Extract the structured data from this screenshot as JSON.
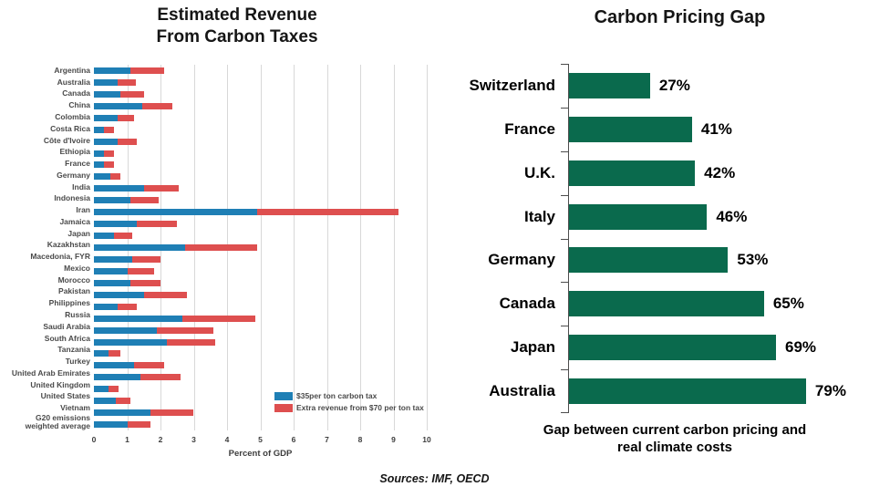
{
  "footer": {
    "sources": "Sources: IMF, OECD"
  },
  "chart_data": [
    {
      "type": "bar",
      "orientation": "horizontal",
      "stacked": true,
      "title": "Estimated Revenue\nFrom Carbon Taxes",
      "xlabel": "Percent of GDP",
      "xlim": [
        0,
        10
      ],
      "xticks": [
        0,
        1,
        2,
        3,
        4,
        5,
        6,
        7,
        8,
        9,
        10
      ],
      "grid": true,
      "gridline_color": "#d8d8d8",
      "legend_position": "inside-bottom-right",
      "categories": [
        "Argentina",
        "Australia",
        "Canada",
        "China",
        "Colombia",
        "Costa Rica",
        "Côte d'Ivoire",
        "Ethiopia",
        "France",
        "Germany",
        "India",
        "Indonesia",
        "Iran",
        "Jamaica",
        "Japan",
        "Kazakhstan",
        "Macedonia, FYR",
        "Mexico",
        "Morocco",
        "Pakistan",
        "Philippines",
        "Russia",
        "Saudi Arabia",
        "South Africa",
        "Tanzania",
        "Turkey",
        "United Arab Emirates",
        "United Kingdom",
        "United States",
        "Vietnam",
        "G20 emissions\nweighted average"
      ],
      "series": [
        {
          "name": "$35per ton carbon tax",
          "color": "#1f7fb5",
          "values": [
            1.1,
            0.7,
            0.8,
            1.45,
            0.7,
            0.3,
            0.7,
            0.3,
            0.3,
            0.5,
            1.5,
            1.1,
            4.9,
            1.3,
            0.6,
            2.75,
            1.15,
            1.0,
            1.1,
            1.5,
            0.7,
            2.65,
            1.9,
            2.2,
            0.45,
            1.2,
            1.4,
            0.45,
            0.65,
            1.7,
            1.0
          ]
        },
        {
          "name": "Extra revenue from $70 per ton tax",
          "color": "#de4f4f",
          "values": [
            1.0,
            0.55,
            0.7,
            0.9,
            0.5,
            0.3,
            0.6,
            0.3,
            0.3,
            0.3,
            1.05,
            0.85,
            4.25,
            1.2,
            0.55,
            2.15,
            0.85,
            0.8,
            0.9,
            1.3,
            0.6,
            2.2,
            1.7,
            1.45,
            0.35,
            0.9,
            1.2,
            0.3,
            0.45,
            1.3,
            0.7
          ]
        }
      ]
    },
    {
      "type": "bar",
      "orientation": "horizontal",
      "title": "Carbon Pricing Gap",
      "bar_color": "#0a6a4d",
      "xlim": [
        0,
        100
      ],
      "grid": false,
      "categories": [
        "Switzerland",
        "France",
        "U.K.",
        "Italy",
        "Germany",
        "Canada",
        "Japan",
        "Australia"
      ],
      "values": [
        27,
        41,
        42,
        46,
        53,
        65,
        69,
        79
      ],
      "value_labels": [
        "27%",
        "41%",
        "42%",
        "46%",
        "53%",
        "65%",
        "69%",
        "79%"
      ],
      "caption": "Gap between current carbon pricing and\nreal climate costs"
    }
  ]
}
